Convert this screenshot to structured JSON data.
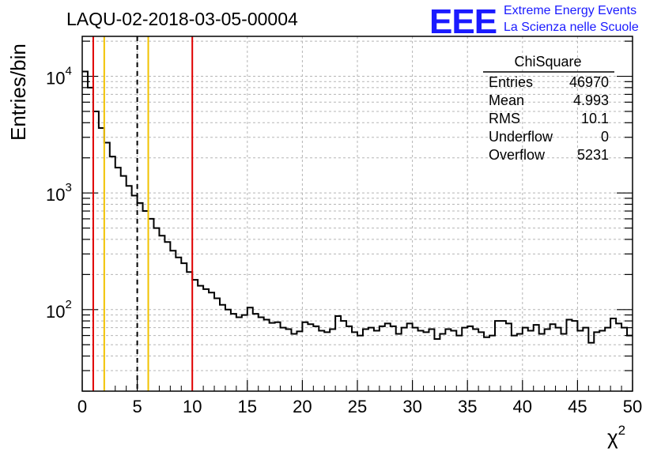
{
  "chart_data": {
    "type": "histogram",
    "title": "LAQU-02-2018-03-05-00004",
    "xlabel": "χ",
    "xlabel_superscript": "2",
    "ylabel": "Entries/bin",
    "xlim": [
      0,
      50
    ],
    "ylim": [
      20,
      22000
    ],
    "yscale": "log",
    "grid": true,
    "bin_width": 0.5,
    "x_ticks": [
      "0",
      "5",
      "10",
      "15",
      "20",
      "25",
      "30",
      "35",
      "40",
      "45",
      "50"
    ],
    "y_ticks": [
      {
        "value": 10000,
        "base": "10",
        "exp": "4"
      },
      {
        "value": 1000,
        "base": "10",
        "exp": "3"
      },
      {
        "value": 100,
        "base": "10",
        "exp": "2"
      }
    ],
    "values": [
      11000,
      8000,
      5000,
      3600,
      2700,
      2050,
      1650,
      1400,
      1150,
      950,
      820,
      700,
      600,
      500,
      430,
      380,
      320,
      280,
      250,
      210,
      180,
      160,
      150,
      140,
      125,
      110,
      100,
      92,
      86,
      90,
      104,
      92,
      86,
      82,
      77,
      78,
      70,
      68,
      62,
      65,
      78,
      75,
      72,
      66,
      64,
      68,
      88,
      80,
      72,
      64,
      60,
      68,
      70,
      66,
      72,
      76,
      72,
      62,
      70,
      76,
      70,
      66,
      64,
      68,
      56,
      62,
      68,
      66,
      60,
      70,
      72,
      68,
      64,
      58,
      60,
      80,
      80,
      76,
      60,
      62,
      70,
      66,
      74,
      62,
      68,
      75,
      70,
      62,
      82,
      80,
      66,
      70,
      52,
      64,
      66,
      70,
      84,
      76,
      70,
      60
    ],
    "vertical_lines": [
      {
        "x": 1,
        "color": "#e00000",
        "style": "solid"
      },
      {
        "x": 2,
        "color": "#f2c200",
        "style": "solid"
      },
      {
        "x": 5,
        "color": "#000000",
        "style": "dashed"
      },
      {
        "x": 6,
        "color": "#f2c200",
        "style": "solid"
      },
      {
        "x": 10,
        "color": "#e00000",
        "style": "solid"
      }
    ],
    "stats": {
      "name": "ChiSquare",
      "rows": [
        {
          "label": "Entries",
          "value": "46970"
        },
        {
          "label": "Mean",
          "value": "4.993"
        },
        {
          "label": "RMS",
          "value": "10.1"
        },
        {
          "label": "Underflow",
          "value": "0"
        },
        {
          "label": "Overflow",
          "value": "5231"
        }
      ]
    }
  },
  "logo": {
    "letters": "EEE",
    "line1": "Extreme Energy Events",
    "line2": "La Scienza nelle Scuole",
    "color": "#1a1aff"
  }
}
